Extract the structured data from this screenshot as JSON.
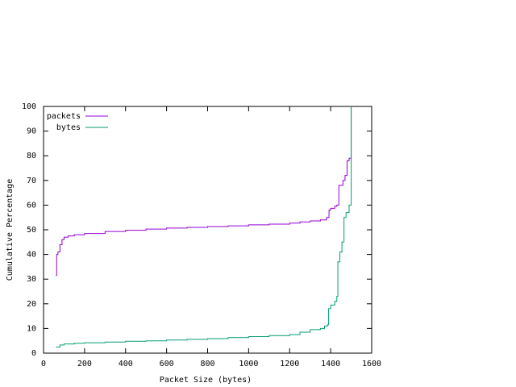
{
  "chart_data": {
    "type": "line",
    "xlabel": "Packet Size (bytes)",
    "ylabel": "Cumulative Percentage",
    "xlim": [
      0,
      1600
    ],
    "xticks": [
      0,
      200,
      400,
      600,
      800,
      1000,
      1200,
      1400,
      1600
    ],
    "ylim": [
      0,
      100
    ],
    "yticks": [
      0,
      10,
      20,
      30,
      40,
      50,
      60,
      70,
      80,
      90,
      100
    ],
    "grid": false,
    "legend": "top-left",
    "step": true,
    "series": [
      {
        "name": "packets",
        "color": "#9400d3",
        "x": [
          60,
          64,
          70,
          80,
          90,
          100,
          120,
          150,
          200,
          300,
          400,
          500,
          600,
          700,
          800,
          900,
          1000,
          1100,
          1200,
          1250,
          1300,
          1350,
          1380,
          1392,
          1400,
          1420,
          1430,
          1440,
          1460,
          1470,
          1480,
          1490,
          1500,
          1500
        ],
        "values": [
          31.5,
          40,
          41,
          44,
          46,
          47,
          47.5,
          48,
          48.5,
          49.3,
          49.8,
          50.3,
          50.7,
          51,
          51.3,
          51.6,
          52,
          52.3,
          52.7,
          53.2,
          53.6,
          54,
          55,
          58,
          58.7,
          59.5,
          60,
          68,
          70,
          72,
          78,
          79,
          80,
          100
        ]
      },
      {
        "name": "bytes",
        "color": "#009e73",
        "x": [
          60,
          80,
          100,
          150,
          200,
          300,
          400,
          500,
          600,
          700,
          800,
          900,
          1000,
          1100,
          1200,
          1250,
          1300,
          1350,
          1370,
          1385,
          1390,
          1400,
          1420,
          1430,
          1435,
          1445,
          1455,
          1465,
          1475,
          1490,
          1500
        ],
        "values": [
          2.5,
          3.3,
          3.7,
          4,
          4.2,
          4.5,
          4.8,
          5,
          5.3,
          5.6,
          5.9,
          6.3,
          6.7,
          7.1,
          7.5,
          8.5,
          9.5,
          10,
          11,
          11.5,
          18,
          19.5,
          21,
          23,
          37,
          41,
          45,
          55,
          57,
          60,
          100
        ]
      }
    ]
  }
}
